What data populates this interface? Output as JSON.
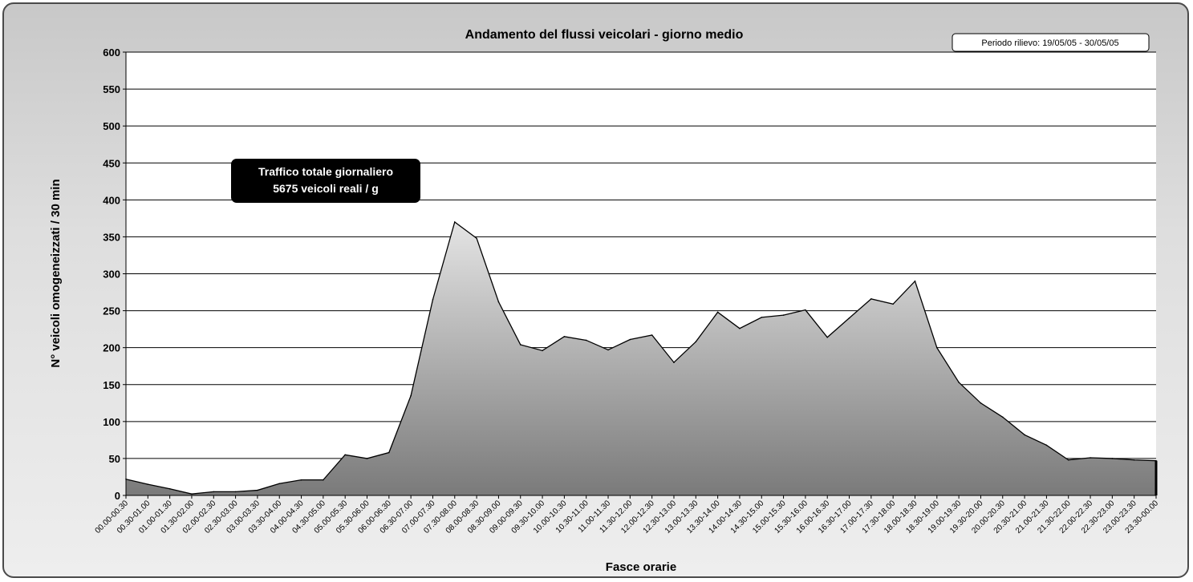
{
  "chart_data": {
    "type": "area",
    "title": "Andamento del flussi veicolari - giorno medio",
    "xlabel": "Fasce orarie",
    "ylabel": "N° veicoli omogeneizzati / 30 min",
    "ylim": [
      0,
      600
    ],
    "yticks": [
      0,
      50,
      100,
      150,
      200,
      250,
      300,
      350,
      400,
      450,
      500,
      550,
      600
    ],
    "grid": true,
    "period_label": "Periodo rilievo: 19/05/05 - 30/05/05",
    "annotation": {
      "line1": "Traffico totale giornaliero",
      "line2": "5675 veicoli reali / g"
    },
    "categories": [
      "00.00-00.30",
      "00.30-01.00",
      "01.00-01.30",
      "01.30-02.00",
      "02.00-02.30",
      "02.30-03.00",
      "03.00-03.30",
      "03.30-04.00",
      "04.00-04.30",
      "04.30-05.00",
      "05.00-05.30",
      "05.30-06.00",
      "06.00-06.30",
      "06.30-07.00",
      "07.00-07.30",
      "07.30-08.00",
      "08.00-08.30",
      "08.30-09.00",
      "09.00-09.30",
      "09.30-10.00",
      "10.00-10.30",
      "10.30-11.00",
      "11.00-11.30",
      "11.30-12.00",
      "12.00-12.30",
      "12.30-13.00",
      "13.00-13.30",
      "13.30-14.00",
      "14.00-14.30",
      "14.30-15.00",
      "15.00-15.30",
      "15.30-16.00",
      "16.00-16.30",
      "16.30-17.00",
      "17.00-17.30",
      "17.30-18.00",
      "18.00-18.30",
      "18.30-19.00",
      "19.00-19.30",
      "19.30-20.00",
      "20.00-20.30",
      "20.30-21.00",
      "21.00-21.30",
      "21.30-22.00",
      "22.00-22.30",
      "22.30-23.00",
      "23.00-23.30",
      "23.30-00.00"
    ],
    "values": [
      22,
      15,
      9,
      2,
      5,
      5,
      7,
      16,
      21,
      21,
      55,
      50,
      58,
      135,
      265,
      370,
      348,
      262,
      204,
      196,
      215,
      210,
      197,
      211,
      217,
      180,
      208,
      248,
      226,
      241,
      244,
      251,
      214,
      240,
      266,
      259,
      290,
      200,
      153,
      125,
      106,
      82,
      68,
      48,
      51,
      50,
      48,
      47
    ]
  }
}
